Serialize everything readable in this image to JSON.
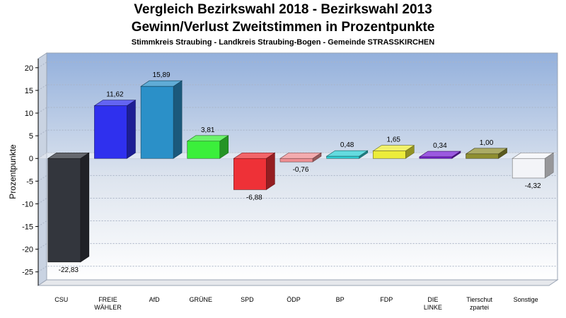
{
  "chart_data": {
    "type": "bar",
    "title": "Vergleich Bezirkswahl 2018 - Bezirkswahl 2013",
    "subtitle": "Gewinn/Verlust Zweitstimmen in Prozentpunkte",
    "subsubtitle": "Stimmkreis Straubing - Landkreis Straubing-Bogen - Gemeinde STRASSKIRCHEN",
    "ylabel": "Prozentpunkte",
    "ylim": [
      -28,
      22
    ],
    "yticks": [
      20,
      15,
      10,
      5,
      0,
      -5,
      -10,
      -15,
      -20,
      -25
    ],
    "categories": [
      [
        "CSU"
      ],
      [
        "FREIE",
        "WÄHLER"
      ],
      [
        "AfD"
      ],
      [
        "GRÜNE"
      ],
      [
        "SPD"
      ],
      [
        "ÖDP"
      ],
      [
        "BP"
      ],
      [
        "FDP"
      ],
      [
        "DIE",
        "LINKE"
      ],
      [
        "Tierschut",
        "zpartei"
      ],
      [
        "Sonstige"
      ]
    ],
    "values": [
      -22.83,
      11.62,
      15.89,
      3.81,
      -6.88,
      -0.76,
      0.48,
      1.65,
      0.34,
      1.0,
      -4.32
    ],
    "value_labels": [
      "-22,83",
      "11,62",
      "15,89",
      "3,81",
      "-6,88",
      "-0,76",
      "0,48",
      "1,65",
      "0,34",
      "1,00",
      "-4,32"
    ],
    "colors": [
      "#33363d",
      "#2f30ee",
      "#2b90c8",
      "#3bef3b",
      "#ee3137",
      "#ef8f93",
      "#30cfd4",
      "#ecec3a",
      "#7a22d6",
      "#8f8f31",
      "#f3f4f8"
    ],
    "grid": true
  }
}
